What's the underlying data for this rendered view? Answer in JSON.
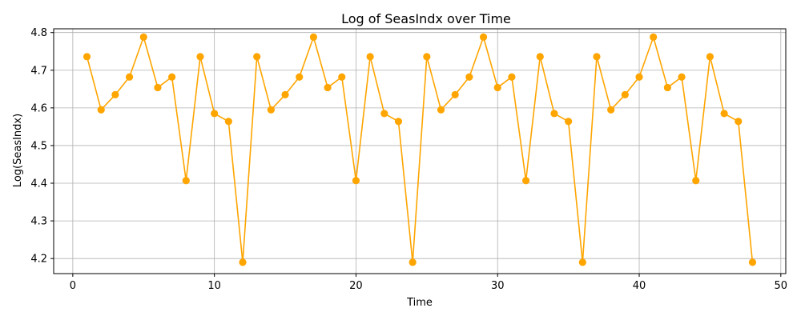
{
  "chart_data": {
    "type": "line",
    "title": "Log of SeasIndx over Time",
    "xlabel": "Time",
    "ylabel": "Log(SeasIndx)",
    "xlim": [
      -1.35,
      50.35
    ],
    "ylim": [
      4.16,
      4.81
    ],
    "xticks": [
      0,
      10,
      20,
      30,
      40,
      50
    ],
    "yticks": [
      4.2,
      4.3,
      4.4,
      4.5,
      4.6,
      4.7,
      4.8
    ],
    "xtick_labels": [
      "0",
      "10",
      "20",
      "30",
      "40",
      "50"
    ],
    "ytick_labels": [
      "4.2",
      "4.3",
      "4.4",
      "4.5",
      "4.6",
      "4.7",
      "4.8"
    ],
    "grid": true,
    "legend": false,
    "series": [
      {
        "color": "#ffa500",
        "marker": "circle",
        "x": [
          1,
          2,
          3,
          4,
          5,
          6,
          7,
          8,
          9,
          10,
          11,
          12,
          13,
          14,
          15,
          16,
          17,
          18,
          19,
          20,
          21,
          22,
          23,
          24,
          25,
          26,
          27,
          28,
          29,
          30,
          31,
          32,
          33,
          34,
          35,
          36,
          37,
          38,
          39,
          40,
          41,
          42,
          43,
          44,
          45,
          46,
          47,
          48
        ],
        "y": [
          4.736,
          4.595,
          4.635,
          4.682,
          4.788,
          4.654,
          4.682,
          4.407,
          4.736,
          4.585,
          4.564,
          4.19,
          4.736,
          4.595,
          4.635,
          4.682,
          4.788,
          4.654,
          4.682,
          4.407,
          4.736,
          4.585,
          4.564,
          4.19,
          4.736,
          4.595,
          4.635,
          4.682,
          4.788,
          4.654,
          4.682,
          4.407,
          4.736,
          4.585,
          4.564,
          4.19,
          4.736,
          4.595,
          4.635,
          4.682,
          4.788,
          4.654,
          4.682,
          4.407,
          4.736,
          4.585,
          4.564,
          4.19
        ]
      }
    ]
  }
}
